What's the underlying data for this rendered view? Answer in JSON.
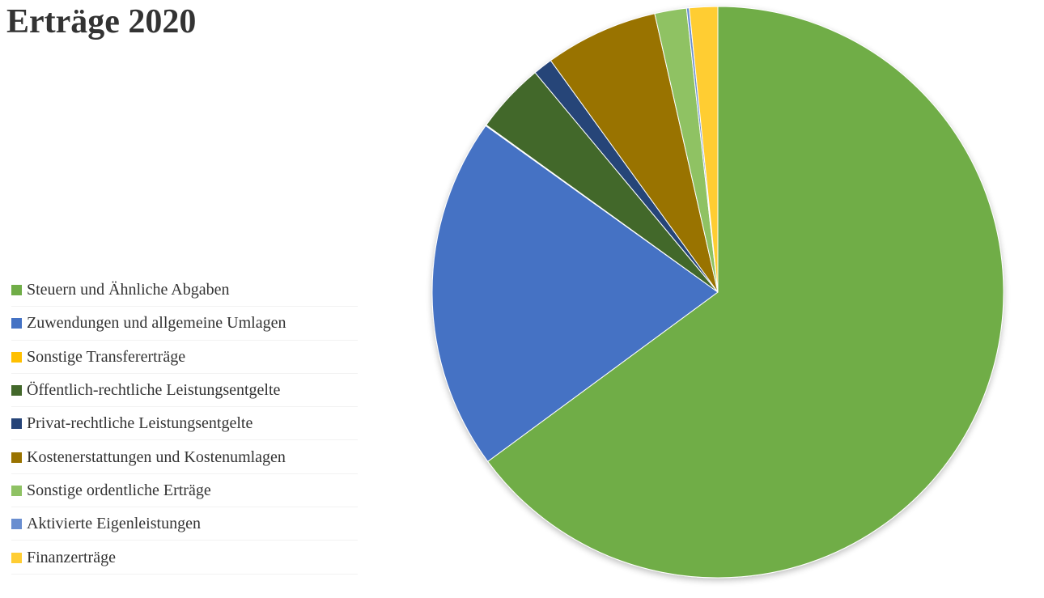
{
  "chart_data": {
    "type": "pie",
    "title": "Erträge 2020",
    "start_angle_deg": 0,
    "direction": "clockwise",
    "legend_position": "left",
    "slices": [
      {
        "name": "Steuern und Ähnliche Abgaben",
        "value": 64.9,
        "color": "#70AD47"
      },
      {
        "name": "Zuwendungen und allgemeine Umlagen",
        "value": 20.0,
        "color": "#4472C4"
      },
      {
        "name": "Sonstige Transfererträge",
        "value": 0.05,
        "color": "#FFC000"
      },
      {
        "name": "Öffentlich-rechtliche Leistungsentgelte",
        "value": 4.0,
        "color": "#43682B"
      },
      {
        "name": "Privat-rechtliche Leistungsentgelte",
        "value": 1.1,
        "color": "#264478"
      },
      {
        "name": "Kostenerstattungen und Kostenumlagen",
        "value": 6.4,
        "color": "#997300"
      },
      {
        "name": "Sonstige ordentliche Erträge",
        "value": 1.8,
        "color": "#8FC264"
      },
      {
        "name": "Aktivierte Eigenleistungen",
        "value": 0.15,
        "color": "#698ED0"
      },
      {
        "name": "Finanzerträge",
        "value": 1.6,
        "color": "#FFCD33"
      }
    ]
  }
}
